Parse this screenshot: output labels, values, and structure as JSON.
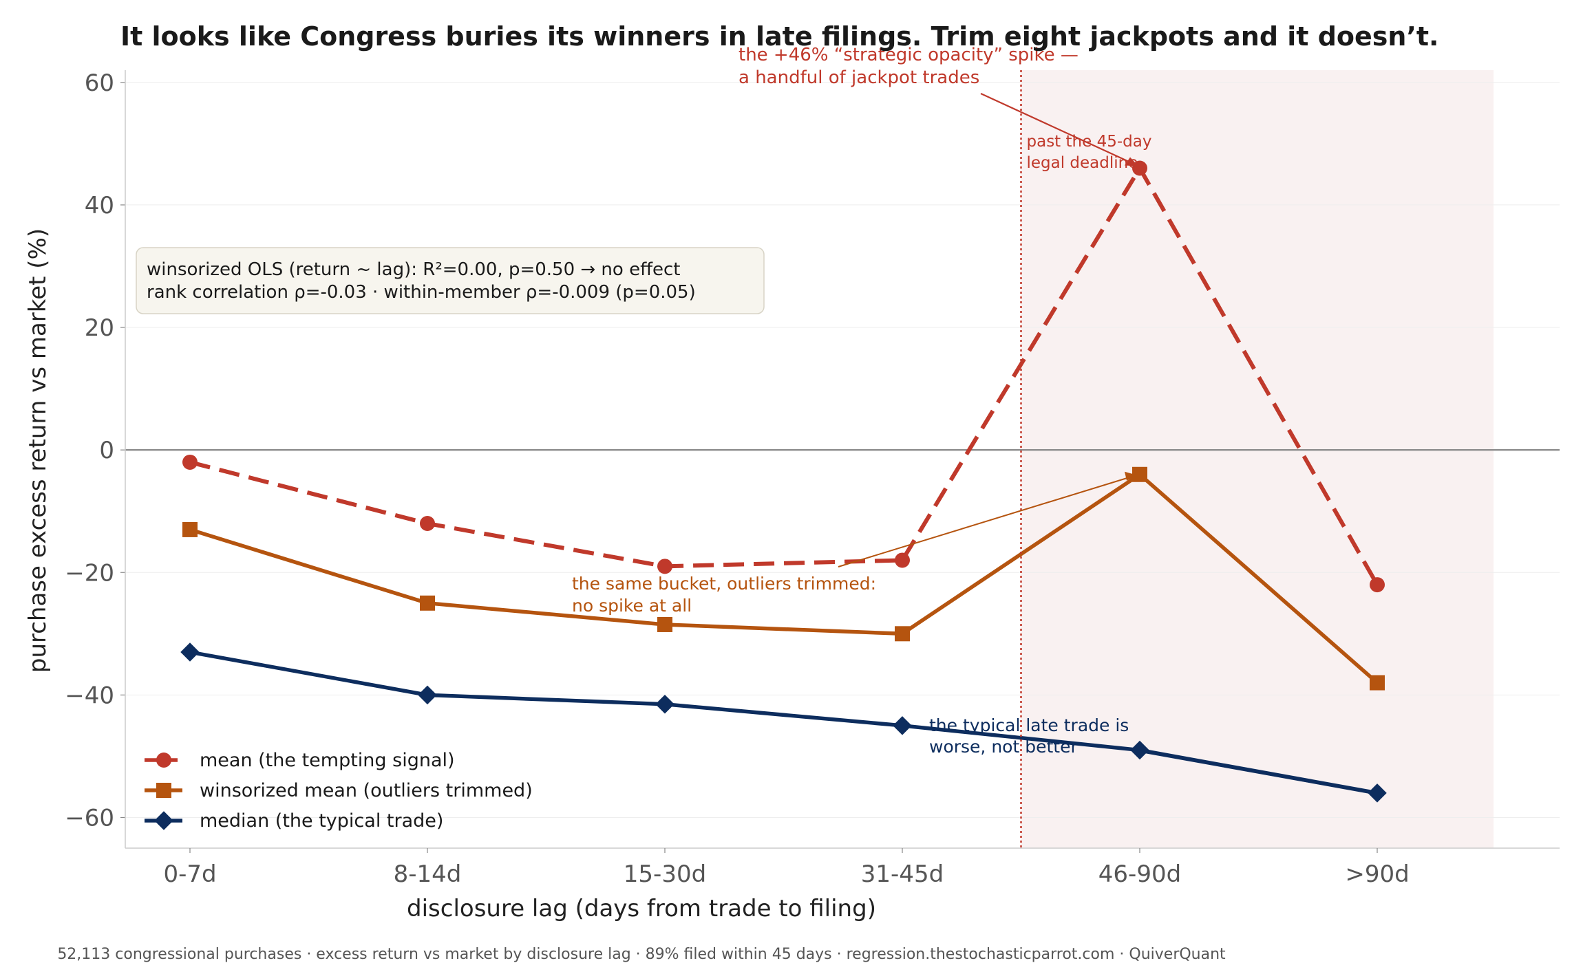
{
  "chart_data": {
    "type": "line",
    "title": "It looks like Congress buries its winners in late filings. Trim eight jackpots and it doesn’t.",
    "xlabel": "disclosure lag  (days from trade to filing)",
    "ylabel": "purchase excess return vs market  (%)",
    "categories": [
      "0-7d",
      "8-14d",
      "15-30d",
      "31-45d",
      "46-90d",
      ">90d"
    ],
    "ylim": [
      -65,
      62
    ],
    "yticks": [
      60,
      40,
      20,
      0,
      -20,
      -40,
      -60
    ],
    "ytick_labels": [
      "60",
      "40",
      "20",
      "0",
      "−20",
      "−40",
      "−60"
    ],
    "grid": true,
    "legend_position": "bottom-left",
    "series": [
      {
        "name": "mean (the tempting signal)",
        "values": [
          -2,
          -12,
          -19,
          -18,
          46,
          -22
        ],
        "color": "#c0392b",
        "marker": "circle",
        "style": "dashed"
      },
      {
        "name": "winsorized mean (outliers trimmed)",
        "values": [
          -13,
          -25,
          -28.5,
          -30,
          -4,
          -38
        ],
        "color": "#b5540f",
        "marker": "square",
        "style": "solid"
      },
      {
        "name": "median (the typical trade)",
        "values": [
          -33,
          -40,
          -41.5,
          -45,
          -49,
          -56
        ],
        "color": "#0d2d5e",
        "marker": "diamond",
        "style": "solid"
      }
    ],
    "deadline_line": {
      "label": [
        "past the 45-day",
        "legal deadline"
      ],
      "color": "#c0392b"
    },
    "stats_box": [
      "winsorized OLS (return ~ lag): R²=0.00, p=0.50  →  no effect",
      "rank correlation ρ=-0.03  ·  within-member ρ=-0.009 (p=0.05)"
    ],
    "annotations": {
      "spike": [
        "the +46% “strategic opacity” spike —",
        "a handful of jackpot trades"
      ],
      "trimmed": [
        "the same bucket, outliers trimmed:",
        "no spike at all"
      ],
      "median": [
        "the typical late trade is",
        "worse, not better"
      ]
    },
    "footer": "52,113 congressional purchases · excess return vs market by disclosure lag · 89% filed within 45 days · regression.thestochasticparrot.com · QuiverQuant"
  }
}
